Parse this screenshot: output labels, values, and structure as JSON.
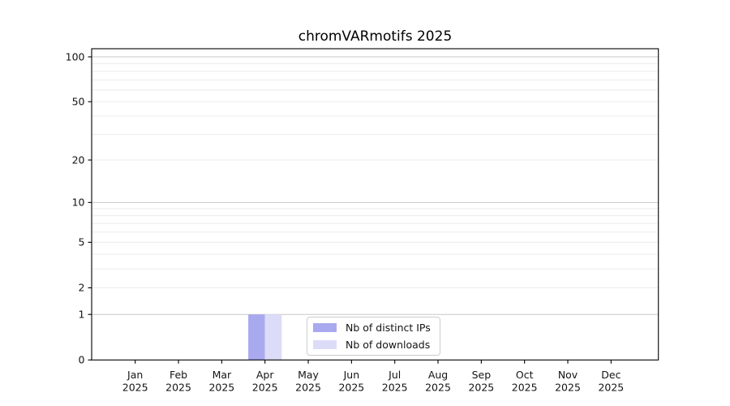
{
  "chart_data": {
    "type": "bar",
    "title": "chromVARmotifs 2025",
    "categories": [
      "Jan",
      "Feb",
      "Mar",
      "Apr",
      "May",
      "Jun",
      "Jul",
      "Aug",
      "Sep",
      "Oct",
      "Nov",
      "Dec"
    ],
    "year_label": "2025",
    "series": [
      {
        "name": "Nb of distinct IPs",
        "color": "#a9a9f0",
        "values": [
          0,
          0,
          0,
          1,
          0,
          0,
          0,
          0,
          0,
          0,
          0,
          0
        ]
      },
      {
        "name": "Nb of downloads",
        "color": "#dcdcf8",
        "values": [
          0,
          0,
          0,
          1,
          0,
          0,
          0,
          0,
          0,
          0,
          0,
          0
        ]
      }
    ],
    "yscale": "log1p",
    "yticks": [
      0,
      1,
      2,
      5,
      10,
      20,
      50,
      100
    ],
    "ylim": [
      0,
      113
    ],
    "grid": {
      "major_values": [
        1,
        10,
        100
      ],
      "minor_values": [
        2,
        3,
        4,
        5,
        6,
        7,
        8,
        9,
        20,
        30,
        40,
        50,
        60,
        70,
        80,
        90
      ],
      "major_color": "#c7c7c7",
      "minor_color": "#ebebeb"
    },
    "legend": {
      "position": "lower center, inside plot"
    },
    "axis_color": "#000000",
    "text_color": "#141414"
  }
}
